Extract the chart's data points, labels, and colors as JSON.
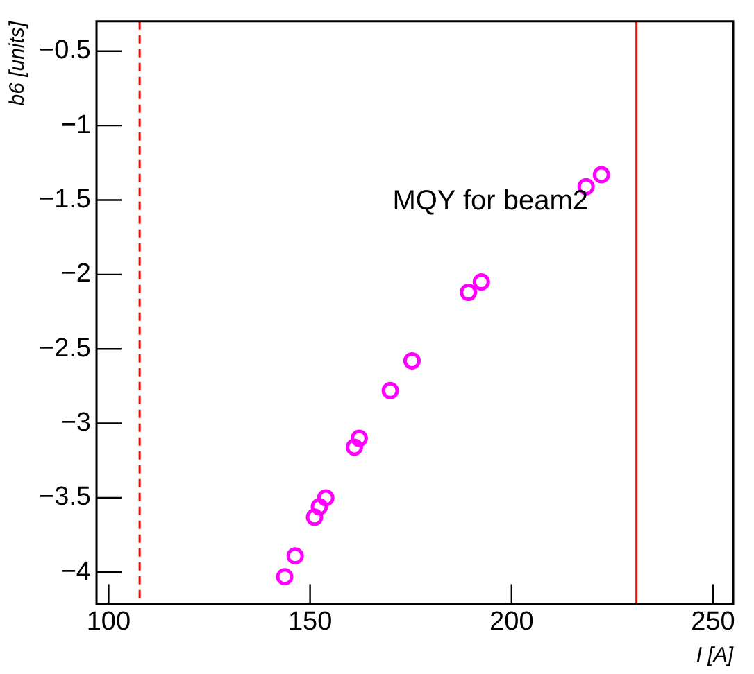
{
  "chart_data": {
    "type": "scatter",
    "xlabel": "I [A]",
    "ylabel": "b6 [units]",
    "x": [
      143.7,
      146.3,
      151.1,
      152.3,
      153.9,
      161.0,
      162.2,
      169.9,
      175.3,
      189.3,
      192.5,
      218.5,
      222.3
    ],
    "series": [
      {
        "color": "#ff00ff",
        "values": [
          -4.03,
          -3.89,
          -3.63,
          -3.56,
          -3.5,
          -3.16,
          -3.1,
          -2.78,
          -2.58,
          -2.12,
          -2.05,
          -1.41,
          -1.33
        ]
      }
    ],
    "xlim": [
      97,
      255
    ],
    "xticks": [
      100,
      150,
      200,
      250
    ],
    "ylim": [
      -4.21,
      -0.3
    ],
    "yticks": [
      -4,
      -3.5,
      -3,
      -2.5,
      -2,
      -1.5,
      -1,
      -0.5
    ],
    "ref_lines": [
      {
        "axis": "x",
        "value": 107.7,
        "color": "#ff0000",
        "line_style": "dashed"
      },
      {
        "axis": "x",
        "value": 231,
        "color": "#ff0000",
        "line_style": "solid"
      }
    ],
    "annotations": [
      "MQY for beam2"
    ],
    "marker": "circle",
    "grid": false,
    "legend": false
  }
}
